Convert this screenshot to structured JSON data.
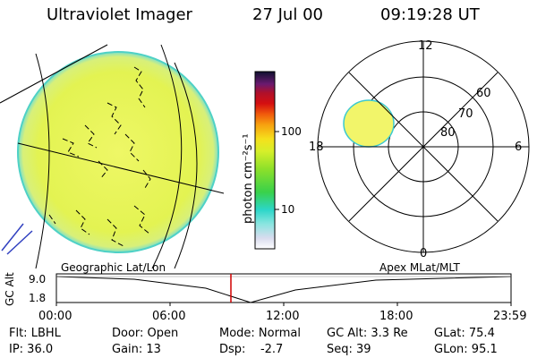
{
  "header": {
    "title": "Ultraviolet Imager",
    "date": "27 Jul 00",
    "time": "09:19:28 UT"
  },
  "colorbar": {
    "unit_label": "photon cm⁻²s⁻¹",
    "ticks": [
      "100",
      "10"
    ]
  },
  "polar_plot": {
    "mlt_labels": [
      "12",
      "18",
      "6",
      "0"
    ],
    "lat_labels": [
      "60",
      "70",
      "80"
    ]
  },
  "timeline": {
    "y_axis_label": "GC Alt",
    "y_ticks": [
      "9.0",
      "1.8"
    ],
    "left_title": "Geographic Lat/Lon",
    "right_title": "Apex MLat/MLT",
    "x_ticks": [
      "00:00",
      "06:00",
      "12:00",
      "18:00",
      "23:59"
    ],
    "current_time_marker": "09:19:28"
  },
  "status": {
    "row1": {
      "flt": "Flt: LBHL",
      "door": "Door: Open",
      "mode": "Mode: Normal",
      "gc_alt": "GC Alt: 3.3 Re",
      "glat": "GLat: 75.4"
    },
    "row2": {
      "ip": "IP: 36.0",
      "gain": "Gain: 13",
      "dsp": "Dsp:    -2.7",
      "seq": "Seq: 39",
      "glon": "GLon: 95.1"
    }
  },
  "colors": {
    "disk": "#e6f55a",
    "disk_edge": "#55d6c8",
    "marker": "#d00000",
    "cap": "#f0f56a"
  }
}
